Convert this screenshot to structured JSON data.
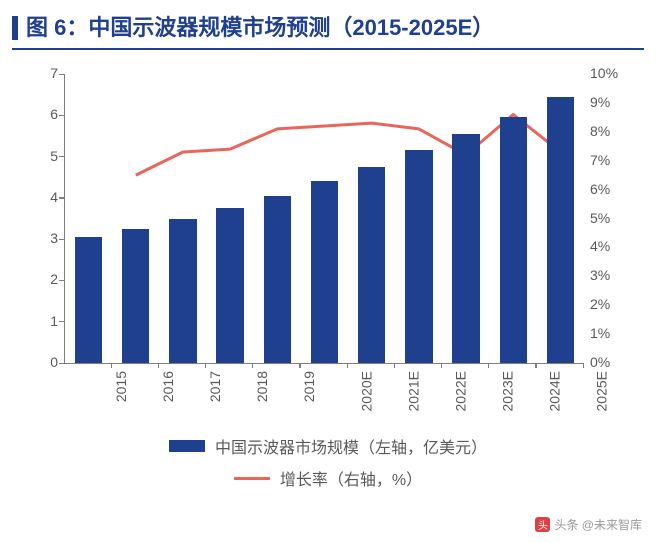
{
  "title": {
    "prefix": "图 6：",
    "text": "中国示波器规模市场预测（2015-2025E）",
    "color": "#1f3f8f",
    "marker_color": "#1f3f8f",
    "underline_color": "#1f3f8f",
    "fontsize": 22
  },
  "chart": {
    "type": "bar+line",
    "categories": [
      "2015",
      "2016",
      "2017",
      "2018",
      "2019",
      "2020E",
      "2021E",
      "2022E",
      "2023E",
      "2024E",
      "2025E"
    ],
    "bars": {
      "values": [
        3.05,
        3.25,
        3.5,
        3.75,
        4.05,
        4.4,
        4.75,
        5.15,
        5.55,
        5.95,
        6.45
      ],
      "color": "#1f3f8f",
      "width_ratio": 0.58
    },
    "line": {
      "values": [
        null,
        6.5,
        7.3,
        7.4,
        8.1,
        8.2,
        8.3,
        8.1,
        7.2,
        8.6,
        7.3
      ],
      "color": "#e8665a",
      "width": 3
    },
    "y_left": {
      "min": 0,
      "max": 7,
      "step": 1,
      "label_color": "#595959",
      "fontsize": 14
    },
    "y_right": {
      "min": 0,
      "max": 10,
      "step": 1,
      "suffix": "%",
      "label_color": "#595959",
      "fontsize": 14
    },
    "x_labels": {
      "rotation": -90,
      "color": "#595959",
      "fontsize": 14
    },
    "axis_color": "#7f7f7f",
    "background_color": "#ffffff"
  },
  "legend": {
    "bar_label": "中国示波器市场规模（左轴，亿美元）",
    "line_label": "增长率（右轴，%）",
    "text_color": "#595959",
    "fontsize": 16
  },
  "watermark": {
    "text": "头条 @未来智库",
    "color": "#9a9a9a"
  }
}
